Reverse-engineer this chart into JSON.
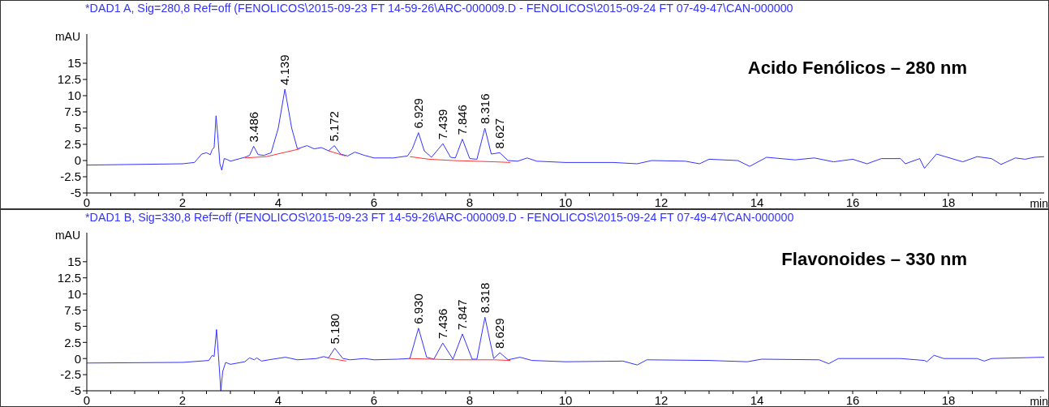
{
  "chart_data": [
    {
      "type": "line",
      "title": "*DAD1 A, Sig=280,8 Ref=off (FENOLICOS\\2015-09-23 FT 14-59-26\\ARC-000009.D - FENOLICOS\\2015-09-24 FT 07-49-47\\CAN-000000",
      "xlabel": "min",
      "ylabel": "mAU",
      "xlim": [
        0,
        20
      ],
      "ylim": [
        -5,
        19.5
      ],
      "xticks": [
        0,
        {
          "value": 0.5,
          "label": null
        },
        {
          "value": 1,
          "label": null
        },
        {
          "value": 1.5,
          "label": null
        },
        2,
        {
          "value": 2.5,
          "label": null
        },
        {
          "value": 3,
          "label": null
        },
        {
          "value": 3.5,
          "label": null
        },
        4,
        {
          "value": 4.5,
          "label": null
        },
        {
          "value": 5,
          "label": null
        },
        {
          "value": 5.5,
          "label": null
        },
        6,
        {
          "value": 6.5,
          "label": null
        },
        {
          "value": 7,
          "label": null
        },
        {
          "value": 7.5,
          "label": null
        },
        8,
        {
          "value": 8.5,
          "label": null
        },
        {
          "value": 9,
          "label": null
        },
        {
          "value": 9.5,
          "label": null
        },
        10,
        {
          "value": 10.5,
          "label": null
        },
        {
          "value": 11,
          "label": null
        },
        {
          "value": 11.5,
          "label": null
        },
        12,
        {
          "value": 12.5,
          "label": null
        },
        {
          "value": 13,
          "label": null
        },
        {
          "value": 13.5,
          "label": null
        },
        14,
        {
          "value": 14.5,
          "label": null
        },
        {
          "value": 15,
          "label": null
        },
        {
          "value": 15.5,
          "label": null
        },
        16,
        {
          "value": 16.5,
          "label": null
        },
        {
          "value": 17,
          "label": null
        },
        {
          "value": 17.5,
          "label": null
        },
        18,
        {
          "value": 18.5,
          "label": null
        },
        {
          "value": 19,
          "label": null
        },
        {
          "value": 19.5,
          "label": null
        }
      ],
      "yticks": [
        -5,
        -2.5,
        0,
        2.5,
        5,
        7.5,
        10,
        12.5,
        15
      ],
      "series": [
        {
          "color": "#3333ff",
          "x": [
            0,
            1,
            2,
            2.25,
            2.4,
            2.5,
            2.58,
            2.62,
            2.66,
            2.7,
            2.74,
            2.78,
            2.82,
            2.87,
            2.92,
            3.0,
            3.2,
            3.3,
            3.4,
            3.486,
            3.58,
            3.7,
            3.85,
            4.0,
            4.139,
            4.28,
            4.4,
            4.6,
            4.75,
            4.9,
            5.05,
            5.172,
            5.3,
            5.45,
            5.6,
            5.8,
            6.0,
            6.4,
            6.7,
            6.8,
            6.929,
            7.05,
            7.2,
            7.439,
            7.6,
            7.7,
            7.846,
            8.0,
            8.15,
            8.316,
            8.45,
            8.627,
            8.8,
            9.0,
            9.2,
            9.4,
            10,
            11,
            11.5,
            11.8,
            12.5,
            12.8,
            13.0,
            13.6,
            13.85,
            14.2,
            14.8,
            15.2,
            15.6,
            16.0,
            16.3,
            16.6,
            17.0,
            17.1,
            17.4,
            17.5,
            17.75,
            18.3,
            18.6,
            18.9,
            19.1,
            19.4,
            19.6,
            19.8,
            20
          ],
          "values": [
            -0.7,
            -0.6,
            -0.5,
            -0.3,
            1.0,
            1.2,
            0.9,
            1.7,
            2.0,
            6.9,
            3.5,
            -0.5,
            -1.5,
            0.3,
            0.2,
            -0.1,
            0.3,
            0.5,
            0.8,
            2.2,
            0.9,
            0.8,
            1.2,
            5,
            11.0,
            5,
            1.8,
            2.3,
            1.8,
            2.0,
            1.5,
            2.3,
            1.0,
            0.7,
            1.3,
            0.8,
            0.4,
            0.4,
            0.7,
            1.8,
            4.3,
            1.5,
            0.5,
            2.6,
            0.5,
            0.4,
            3.3,
            0.3,
            0.2,
            5.0,
            1.0,
            1.2,
            0.0,
            -0.1,
            0.4,
            -0.1,
            -0.3,
            -0.3,
            -0.5,
            0.0,
            -0.1,
            -0.5,
            0.2,
            0.0,
            -0.9,
            0.5,
            0.1,
            0.4,
            -0.2,
            0.2,
            -0.5,
            0.3,
            0.3,
            -0.5,
            0.3,
            -1.2,
            1.0,
            -0.2,
            0.6,
            0.3,
            -0.6,
            0.4,
            0.2,
            0.5,
            0.6
          ]
        },
        {
          "color": "#ff3333",
          "x": [
            3.3,
            3.75,
            4.45,
            4.75,
            5.05,
            5.4,
            6.0,
            6.75,
            7.15,
            7.65,
            8.1,
            8.52,
            8.85
          ],
          "values": [
            0.4,
            0.6,
            1.8,
            null,
            1.5,
            0.7,
            null,
            0.6,
            0.2,
            0.0,
            -0.1,
            -0.2,
            -0.3
          ]
        }
      ],
      "annotations": [
        "Acido Fenólicos – 280 nm",
        {
          "text": "3.486",
          "x": 3.486,
          "y": 2.2
        },
        {
          "text": "4.139",
          "x": 4.139,
          "y": 11.0
        },
        {
          "text": "5.172",
          "x": 5.172,
          "y": 2.3
        },
        {
          "text": "6.929",
          "x": 6.929,
          "y": 4.3
        },
        {
          "text": "7.439",
          "x": 7.439,
          "y": 2.6
        },
        {
          "text": "7.846",
          "x": 7.846,
          "y": 3.3
        },
        {
          "text": "8.316",
          "x": 8.316,
          "y": 5.0
        },
        {
          "text": "8.627",
          "x": 8.627,
          "y": 1.2
        }
      ]
    },
    {
      "type": "line",
      "title": "*DAD1 B, Sig=330,8 Ref=off (FENOLICOS\\2015-09-23 FT 14-59-26\\ARC-000009.D - FENOLICOS\\2015-09-24 FT 07-49-47\\CAN-000000",
      "xlabel": "min",
      "ylabel": "mAU",
      "xlim": [
        0,
        20
      ],
      "ylim": [
        -5,
        19.5
      ],
      "xticks": [
        0,
        {
          "value": 0.5,
          "label": null
        },
        {
          "value": 1,
          "label": null
        },
        {
          "value": 1.5,
          "label": null
        },
        2,
        {
          "value": 2.5,
          "label": null
        },
        {
          "value": 3,
          "label": null
        },
        {
          "value": 3.5,
          "label": null
        },
        4,
        {
          "value": 4.5,
          "label": null
        },
        {
          "value": 5,
          "label": null
        },
        {
          "value": 5.5,
          "label": null
        },
        6,
        {
          "value": 6.5,
          "label": null
        },
        {
          "value": 7,
          "label": null
        },
        {
          "value": 7.5,
          "label": null
        },
        8,
        {
          "value": 8.5,
          "label": null
        },
        {
          "value": 9,
          "label": null
        },
        {
          "value": 9.5,
          "label": null
        },
        10,
        {
          "value": 10.5,
          "label": null
        },
        {
          "value": 11,
          "label": null
        },
        {
          "value": 11.5,
          "label": null
        },
        12,
        {
          "value": 12.5,
          "label": null
        },
        {
          "value": 13,
          "label": null
        },
        {
          "value": 13.5,
          "label": null
        },
        14,
        {
          "value": 14.5,
          "label": null
        },
        {
          "value": 15,
          "label": null
        },
        {
          "value": 15.5,
          "label": null
        },
        16,
        {
          "value": 16.5,
          "label": null
        },
        {
          "value": 17,
          "label": null
        },
        {
          "value": 17.5,
          "label": null
        },
        18,
        {
          "value": 18.5,
          "label": null
        },
        {
          "value": 19,
          "label": null
        },
        {
          "value": 19.5,
          "label": null
        }
      ],
      "yticks": [
        -5,
        -2.5,
        0,
        2.5,
        5,
        7.5,
        10,
        12.5,
        15
      ],
      "series": [
        {
          "color": "#3333ff",
          "x": [
            0,
            2,
            2.55,
            2.62,
            2.66,
            2.71,
            2.75,
            2.8,
            2.84,
            2.9,
            3.0,
            3.3,
            3.4,
            3.5,
            3.55,
            3.65,
            3.8,
            4.15,
            4.4,
            4.8,
            4.95,
            5.05,
            5.18,
            5.35,
            5.5,
            5.8,
            6.0,
            6.5,
            6.75,
            6.93,
            7.1,
            7.25,
            7.436,
            7.65,
            7.847,
            8.05,
            8.15,
            8.318,
            8.5,
            8.629,
            8.8,
            9.05,
            9.3,
            10,
            11.2,
            11.5,
            11.7,
            13,
            13.8,
            14.1,
            15.3,
            15.5,
            15.7,
            17,
            17.5,
            17.55,
            17.7,
            17.9,
            18.6,
            18.75,
            18.9,
            20
          ],
          "values": [
            -0.7,
            -0.6,
            -0.3,
            0.5,
            0.3,
            4.5,
            0.5,
            -5.0,
            -2,
            -0.6,
            -0.9,
            -0.5,
            0.1,
            -0.2,
            0.1,
            -0.4,
            -0.2,
            0.2,
            -0.2,
            0.0,
            0.3,
            0.1,
            1.6,
            0,
            -0.2,
            0.0,
            -0.2,
            -0.1,
            0.0,
            4.7,
            0.2,
            -0.1,
            2.4,
            -0.1,
            3.8,
            -0.1,
            -0.1,
            6.4,
            0.0,
            0.9,
            -0.2,
            0.2,
            -0.3,
            -0.5,
            -0.4,
            -1.0,
            -0.2,
            -0.3,
            -0.5,
            -0.1,
            -0.2,
            -0.8,
            0.0,
            0.0,
            -0.3,
            -0.5,
            0.5,
            0.0,
            0.0,
            -0.4,
            0.0,
            0.2
          ]
        },
        {
          "color": "#ff3333",
          "x": [
            5.02,
            5.42,
            6.0,
            6.72,
            7.22,
            7.67,
            8.1,
            8.52,
            8.85
          ],
          "values": [
            0.1,
            -0.4,
            null,
            0.0,
            -0.1,
            -0.2,
            -0.2,
            -0.2,
            -0.3
          ]
        }
      ],
      "annotations": [
        "Flavonoides – 330 nm",
        {
          "text": "5.180",
          "x": 5.18,
          "y": 1.6
        },
        {
          "text": "6.930",
          "x": 6.93,
          "y": 4.7
        },
        {
          "text": "7.436",
          "x": 7.436,
          "y": 2.4
        },
        {
          "text": "7.847",
          "x": 7.847,
          "y": 3.8
        },
        {
          "text": "8.318",
          "x": 8.318,
          "y": 6.4
        },
        {
          "text": "8.629",
          "x": 8.629,
          "y": 0.9
        }
      ]
    }
  ]
}
